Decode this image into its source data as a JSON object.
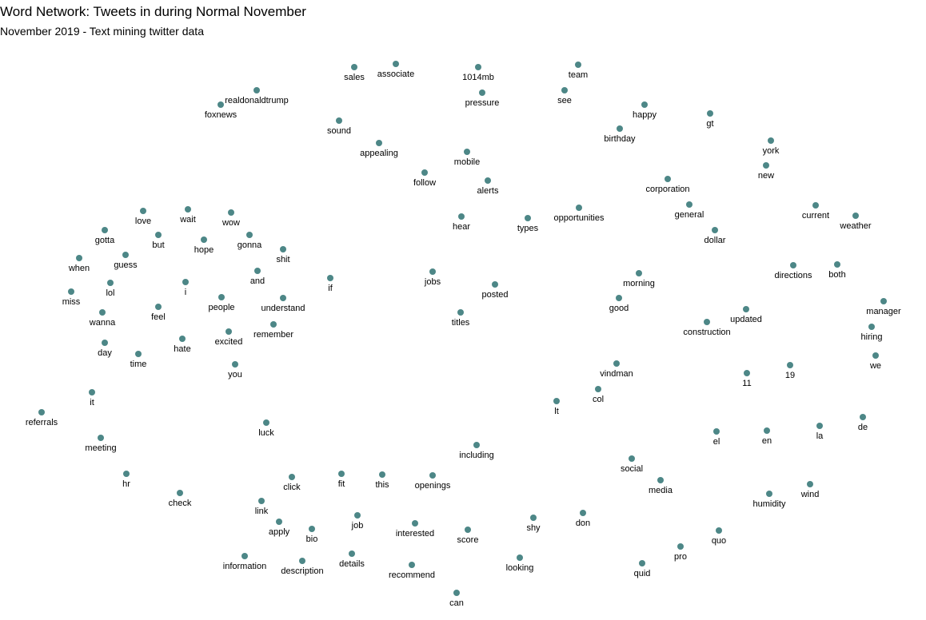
{
  "title": "Word Network: Tweets in during Normal November",
  "subtitle": "November 2019 - Text mining twitter data",
  "colors": {
    "node": "#4d8787",
    "label": "#000000",
    "background": "#ffffff"
  },
  "chart_data": {
    "type": "network",
    "title": "Word Network: Tweets in during Normal November",
    "subtitle": "November 2019 - Text mining twitter data",
    "edges_visible": false,
    "nodes": [
      "sales",
      "associate",
      "1014mb",
      "team",
      "realdonaldtrump",
      "foxnews",
      "pressure",
      "see",
      "happy",
      "gt",
      "sound",
      "birthday",
      "appealing",
      "york",
      "mobile",
      "follow",
      "alerts",
      "new",
      "corporation",
      "love",
      "wait",
      "wow",
      "current",
      "general",
      "hear",
      "types",
      "opportunities",
      "weather",
      "gotta",
      "but",
      "dollar",
      "gonna",
      "hope",
      "shit",
      "when",
      "guess",
      "directions",
      "both",
      "jobs",
      "and",
      "if",
      "morning",
      "lol",
      "i",
      "posted",
      "miss",
      "people",
      "understand",
      "good",
      "manager",
      "feel",
      "wanna",
      "updated",
      "titles",
      "construction",
      "remember",
      "hiring",
      "excited",
      "hate",
      "day",
      "time",
      "we",
      "vindman",
      "you",
      "11",
      "19",
      "col",
      "it",
      "lt",
      "referrals",
      "de",
      "la",
      "luck",
      "el",
      "en",
      "meeting",
      "including",
      "social",
      "hr",
      "click",
      "fit",
      "this",
      "openings",
      "media",
      "check",
      "wind",
      "humidity",
      "link",
      "job",
      "don",
      "apply",
      "shy",
      "quo",
      "bio",
      "interested",
      "score",
      "pro",
      "information",
      "details",
      "looking",
      "quid",
      "description",
      "recommend",
      "can"
    ]
  }
}
